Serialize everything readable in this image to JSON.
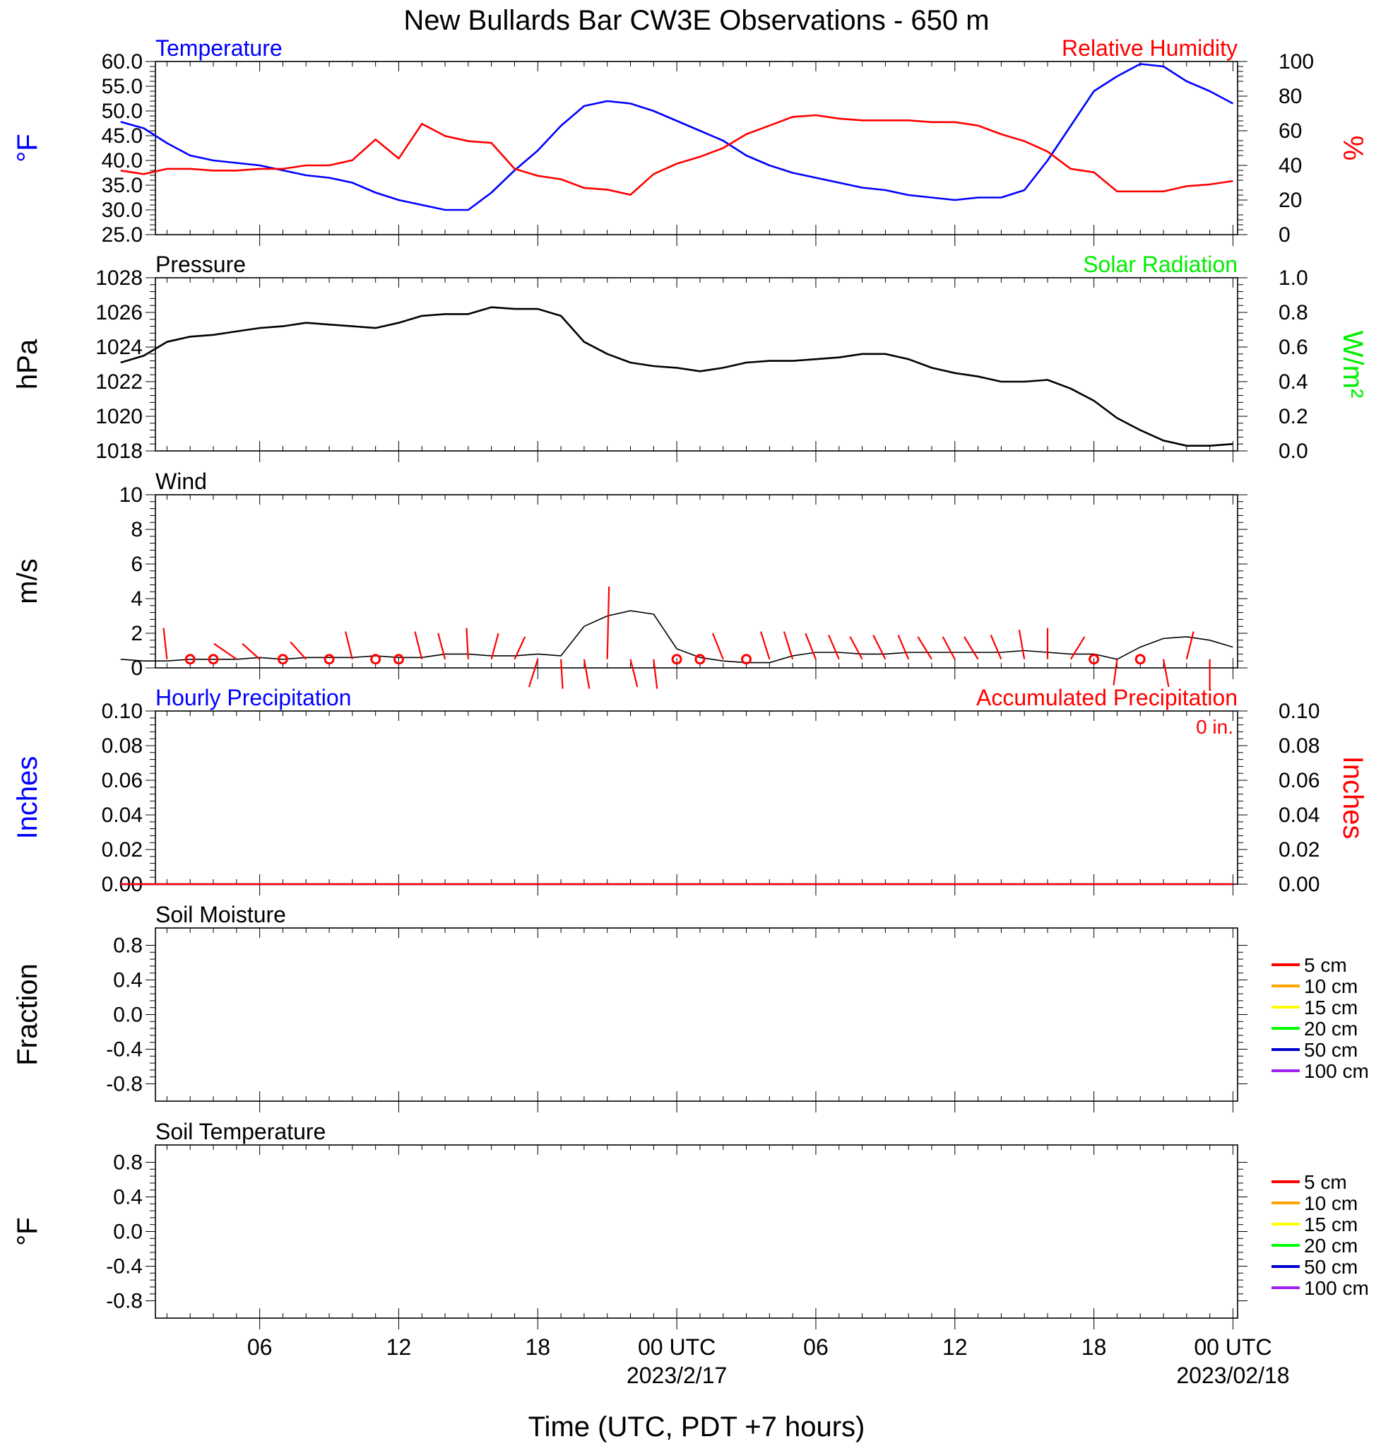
{
  "figure": {
    "title": "New Bullards Bar CW3E Observations - 650 m",
    "xlabel": "Time (UTC, PDT +7 hours)",
    "colors": {
      "blue": "#0000ff",
      "red": "#ff0000",
      "green": "#00ee00",
      "black": "#000000"
    }
  },
  "x_axis": {
    "ticks": [
      {
        "hour": 6,
        "label": "06"
      },
      {
        "hour": 12,
        "label": "12"
      },
      {
        "hour": 18,
        "label": "18"
      },
      {
        "hour": 24,
        "label": "00 UTC",
        "date": "2023/2/17"
      },
      {
        "hour": 30,
        "label": "06"
      },
      {
        "hour": 36,
        "label": "12"
      },
      {
        "hour": 42,
        "label": "18"
      },
      {
        "hour": 48,
        "label": "00 UTC",
        "date": "2023/02/18"
      }
    ]
  },
  "chart_data": [
    {
      "type": "line",
      "left_title": "Temperature",
      "right_title": "Relative Humidity",
      "ylabel": "°F",
      "ylabel_right": "%",
      "ylim": [
        25,
        60
      ],
      "ylim_right": [
        0,
        100
      ],
      "yticks": [
        "25.0",
        "30.0",
        "35.0",
        "40.0",
        "45.0",
        "50.0",
        "55.0",
        "60.0"
      ],
      "yticks_right": [
        "0",
        "20",
        "40",
        "60",
        "80",
        "100"
      ],
      "x": [
        0,
        1,
        2,
        3,
        4,
        5,
        6,
        7,
        8,
        9,
        10,
        11,
        12,
        13,
        14,
        15,
        16,
        17,
        18,
        19,
        20,
        21,
        22,
        23,
        24,
        25,
        26,
        27,
        28,
        29,
        30,
        31,
        32,
        33,
        34,
        35,
        36,
        37,
        38,
        39,
        40,
        41,
        42,
        43,
        44,
        45,
        46,
        47,
        48
      ],
      "series": [
        {
          "name": "Temperature",
          "color": "#0000ff",
          "axis": "left",
          "values": [
            47.8,
            46.5,
            43.5,
            41,
            40,
            39.5,
            39,
            38,
            37,
            36.5,
            35.5,
            33.5,
            32,
            31,
            30,
            30,
            33.5,
            38,
            42,
            47,
            51,
            52,
            51.5,
            50,
            48,
            46,
            44,
            41,
            39,
            37.5,
            36.5,
            35.5,
            34.5,
            34,
            33,
            32.5,
            32,
            32.5,
            32.5,
            34,
            40,
            47,
            54,
            57,
            59.5,
            59,
            56,
            54,
            51.5
          ]
        },
        {
          "name": "Relative Humidity",
          "color": "#ff0000",
          "axis": "right",
          "values": [
            37,
            35,
            38,
            38,
            37,
            37,
            38,
            38,
            40,
            40,
            43,
            55,
            44,
            64,
            57,
            54,
            53,
            38,
            34,
            32,
            27,
            26,
            23,
            35,
            41,
            45,
            50,
            58,
            63,
            68,
            69,
            67,
            66,
            66,
            66,
            65,
            65,
            63,
            58,
            54,
            48,
            38,
            36,
            25,
            25,
            25,
            28,
            29,
            31
          ]
        }
      ]
    },
    {
      "type": "line",
      "left_title": "Pressure",
      "right_title": "Solar Radiation",
      "ylabel": "hPa",
      "ylabel_right": "W/m²",
      "ylim": [
        1018,
        1028
      ],
      "ylim_right": [
        0,
        1
      ],
      "yticks": [
        "1018",
        "1020",
        "1022",
        "1024",
        "1026",
        "1028"
      ],
      "yticks_right": [
        "0.0",
        "0.2",
        "0.4",
        "0.6",
        "0.8",
        "1.0"
      ],
      "x": [
        0,
        1,
        2,
        3,
        4,
        5,
        6,
        7,
        8,
        9,
        10,
        11,
        12,
        13,
        14,
        15,
        16,
        17,
        18,
        19,
        20,
        21,
        22,
        23,
        24,
        25,
        26,
        27,
        28,
        29,
        30,
        31,
        32,
        33,
        34,
        35,
        36,
        37,
        38,
        39,
        40,
        41,
        42,
        43,
        44,
        45,
        46,
        47,
        48
      ],
      "series": [
        {
          "name": "Pressure",
          "color": "#000000",
          "axis": "left",
          "values": [
            1023.1,
            1023.5,
            1024.3,
            1024.6,
            1024.7,
            1024.9,
            1025.1,
            1025.2,
            1025.4,
            1025.3,
            1025.2,
            1025.1,
            1025.4,
            1025.8,
            1025.9,
            1025.9,
            1026.3,
            1026.2,
            1026.2,
            1025.8,
            1024.3,
            1023.6,
            1023.1,
            1022.9,
            1022.8,
            1022.6,
            1022.8,
            1023.1,
            1023.2,
            1023.2,
            1023.3,
            1023.4,
            1023.6,
            1023.6,
            1023.3,
            1022.8,
            1022.5,
            1022.3,
            1022.0,
            1022.0,
            1022.1,
            1021.6,
            1020.9,
            1019.9,
            1019.2,
            1018.6,
            1018.3,
            1018.3,
            1018.4
          ]
        }
      ]
    },
    {
      "type": "line",
      "left_title": "Wind",
      "ylabel": "m/s",
      "ylim": [
        0,
        10
      ],
      "yticks": [
        "0",
        "2",
        "4",
        "6",
        "8",
        "10"
      ],
      "x": [
        0,
        1,
        2,
        3,
        4,
        5,
        6,
        7,
        8,
        9,
        10,
        11,
        12,
        13,
        14,
        15,
        16,
        17,
        18,
        19,
        20,
        21,
        22,
        23,
        24,
        25,
        26,
        27,
        28,
        29,
        30,
        31,
        32,
        33,
        34,
        35,
        36,
        37,
        38,
        39,
        40,
        41,
        42,
        43,
        44,
        45,
        46,
        47,
        48
      ],
      "series": [
        {
          "name": "Wind speed",
          "color": "#000000",
          "axis": "left",
          "values": [
            0.5,
            0.4,
            0.4,
            0.5,
            0.5,
            0.5,
            0.6,
            0.5,
            0.6,
            0.6,
            0.6,
            0.7,
            0.6,
            0.6,
            0.8,
            0.8,
            0.7,
            0.7,
            0.8,
            0.7,
            2.4,
            3.0,
            3.3,
            3.1,
            1.1,
            0.6,
            0.4,
            0.3,
            0.3,
            0.7,
            0.9,
            0.9,
            0.8,
            0.8,
            0.9,
            0.9,
            0.9,
            0.9,
            0.9,
            1.0,
            0.9,
            0.8,
            0.8,
            0.5,
            1.2,
            1.7,
            1.8,
            1.6,
            1.2
          ]
        },
        {
          "name": "Wind barbs",
          "color": "#ff0000",
          "axis": "left",
          "barbs": [
            {
              "hour": 2,
              "dx": -0.2,
              "dy": 1.8
            },
            {
              "hour": 3,
              "calm": true
            },
            {
              "hour": 4,
              "calm": true
            },
            {
              "hour": 5,
              "dx": -1.3,
              "dy": 0.9
            },
            {
              "hour": 6,
              "dx": -1.0,
              "dy": 0.9
            },
            {
              "hour": 7,
              "calm": true
            },
            {
              "hour": 8,
              "dx": -0.9,
              "dy": 1.0
            },
            {
              "hour": 9,
              "calm": true
            },
            {
              "hour": 10,
              "dx": -0.4,
              "dy": 1.6
            },
            {
              "hour": 11,
              "calm": true
            },
            {
              "hour": 12,
              "calm": true
            },
            {
              "hour": 13,
              "dx": -0.4,
              "dy": 1.6
            },
            {
              "hour": 14,
              "dx": -0.4,
              "dy": 1.5
            },
            {
              "hour": 15,
              "dx": -0.1,
              "dy": 1.8
            },
            {
              "hour": 16,
              "dx": 0.4,
              "dy": 1.5
            },
            {
              "hour": 17,
              "dx": 0.6,
              "dy": 1.3
            },
            {
              "hour": 18,
              "dx": -0.5,
              "dy": -1.6
            },
            {
              "hour": 19,
              "dx": 0.1,
              "dy": -1.7
            },
            {
              "hour": 20,
              "dx": 0.3,
              "dy": -1.7
            },
            {
              "hour": 21,
              "dx": 0.1,
              "dy": 4.2
            },
            {
              "hour": 22,
              "dx": 0.4,
              "dy": -1.6
            },
            {
              "hour": 23,
              "dx": 0.2,
              "dy": -1.7
            },
            {
              "hour": 24,
              "calm": true
            },
            {
              "hour": 25,
              "calm": true
            },
            {
              "hour": 26,
              "dx": -0.6,
              "dy": 1.5
            },
            {
              "hour": 27,
              "calm": true
            },
            {
              "hour": 28,
              "dx": -0.5,
              "dy": 1.6
            },
            {
              "hour": 29,
              "dx": -0.5,
              "dy": 1.6
            },
            {
              "hour": 30,
              "dx": -0.6,
              "dy": 1.5
            },
            {
              "hour": 31,
              "dx": -0.6,
              "dy": 1.4
            },
            {
              "hour": 32,
              "dx": -0.7,
              "dy": 1.3
            },
            {
              "hour": 33,
              "dx": -0.7,
              "dy": 1.4
            },
            {
              "hour": 34,
              "dx": -0.6,
              "dy": 1.4
            },
            {
              "hour": 35,
              "dx": -0.8,
              "dy": 1.3
            },
            {
              "hour": 36,
              "dx": -0.7,
              "dy": 1.3
            },
            {
              "hour": 37,
              "dx": -0.8,
              "dy": 1.3
            },
            {
              "hour": 38,
              "dx": -0.6,
              "dy": 1.4
            },
            {
              "hour": 39,
              "dx": -0.3,
              "dy": 1.7
            },
            {
              "hour": 40,
              "dx": 0.0,
              "dy": 1.8
            },
            {
              "hour": 41,
              "dx": 0.8,
              "dy": 1.3
            },
            {
              "hour": 42,
              "calm": true
            },
            {
              "hour": 43,
              "dx": -0.2,
              "dy": -1.5
            },
            {
              "hour": 44,
              "calm": true
            },
            {
              "hour": 45,
              "dx": 0.3,
              "dy": -1.6
            },
            {
              "hour": 46,
              "dx": 0.4,
              "dy": 1.6
            },
            {
              "hour": 47,
              "dx": 0.0,
              "dy": -1.8
            }
          ]
        }
      ]
    },
    {
      "type": "line",
      "left_title": "Hourly Precipitation",
      "right_title": "Accumulated Precipitation",
      "annotation": "0 in.",
      "ylabel": "Inches",
      "ylabel_right": "Inches",
      "ylim": [
        0,
        0.1
      ],
      "ylim_right": [
        0,
        0.1
      ],
      "yticks": [
        "0.00",
        "0.02",
        "0.04",
        "0.06",
        "0.08",
        "0.10"
      ],
      "yticks_right": [
        "0.00",
        "0.02",
        "0.04",
        "0.06",
        "0.08",
        "0.10"
      ],
      "x": [
        0,
        48
      ],
      "series": [
        {
          "name": "Hourly Precipitation",
          "color": "#0000ff",
          "axis": "left",
          "values": [
            0,
            0
          ]
        },
        {
          "name": "Accumulated Precipitation",
          "color": "#ff0000",
          "axis": "right",
          "values": [
            0,
            0
          ]
        }
      ]
    },
    {
      "type": "line",
      "left_title": "Soil Moisture",
      "ylabel": "Fraction",
      "ylim": [
        -1,
        1
      ],
      "yticks": [
        "-0.8",
        "-0.4",
        "0.0",
        "0.4",
        "0.8"
      ],
      "legend": [
        {
          "name": "5 cm",
          "color": "#ff0000"
        },
        {
          "name": "10 cm",
          "color": "#ffa500"
        },
        {
          "name": "15 cm",
          "color": "#ffff00"
        },
        {
          "name": "20 cm",
          "color": "#00ff00"
        },
        {
          "name": "50 cm",
          "color": "#0000cd"
        },
        {
          "name": "100 cm",
          "color": "#a020f0"
        }
      ],
      "series": []
    },
    {
      "type": "line",
      "left_title": "Soil Temperature",
      "ylabel": "°F",
      "ylim": [
        -1,
        1
      ],
      "yticks": [
        "-0.8",
        "-0.4",
        "0.0",
        "0.4",
        "0.8"
      ],
      "legend": [
        {
          "name": "5 cm",
          "color": "#ff0000"
        },
        {
          "name": "10 cm",
          "color": "#ffa500"
        },
        {
          "name": "15 cm",
          "color": "#ffff00"
        },
        {
          "name": "20 cm",
          "color": "#00ff00"
        },
        {
          "name": "50 cm",
          "color": "#0000cd"
        },
        {
          "name": "100 cm",
          "color": "#a020f0"
        }
      ],
      "series": []
    }
  ]
}
